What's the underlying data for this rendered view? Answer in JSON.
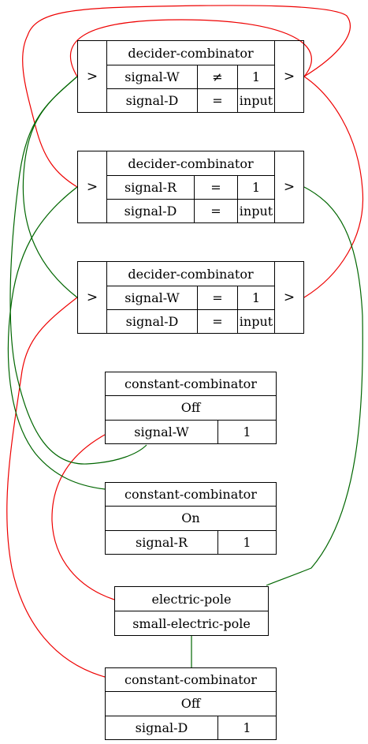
{
  "colors": {
    "red": "#ee0000",
    "green": "#006600",
    "stroke": "#000000",
    "background": "#ffffff"
  },
  "deciders": [
    {
      "title": "decider-combinator",
      "in_port": ">",
      "out_port": ">",
      "signal": "signal-W",
      "op": "≠",
      "constant": "1",
      "out_signal": "signal-D",
      "out_op": "=",
      "out_mode": "input"
    },
    {
      "title": "decider-combinator",
      "in_port": ">",
      "out_port": ">",
      "signal": "signal-R",
      "op": "=",
      "constant": "1",
      "out_signal": "signal-D",
      "out_op": "=",
      "out_mode": "input"
    },
    {
      "title": "decider-combinator",
      "in_port": ">",
      "out_port": ">",
      "signal": "signal-W",
      "op": "=",
      "constant": "1",
      "out_signal": "signal-D",
      "out_op": "=",
      "out_mode": "input"
    }
  ],
  "constants": [
    {
      "title": "constant-combinator",
      "state": "Off",
      "signal": "signal-W",
      "value": "1"
    },
    {
      "title": "constant-combinator",
      "state": "On",
      "signal": "signal-R",
      "value": "1"
    },
    {
      "title": "constant-combinator",
      "state": "Off",
      "signal": "signal-D",
      "value": "1"
    }
  ],
  "pole": {
    "title": "electric-pole",
    "type": "small-electric-pole"
  }
}
